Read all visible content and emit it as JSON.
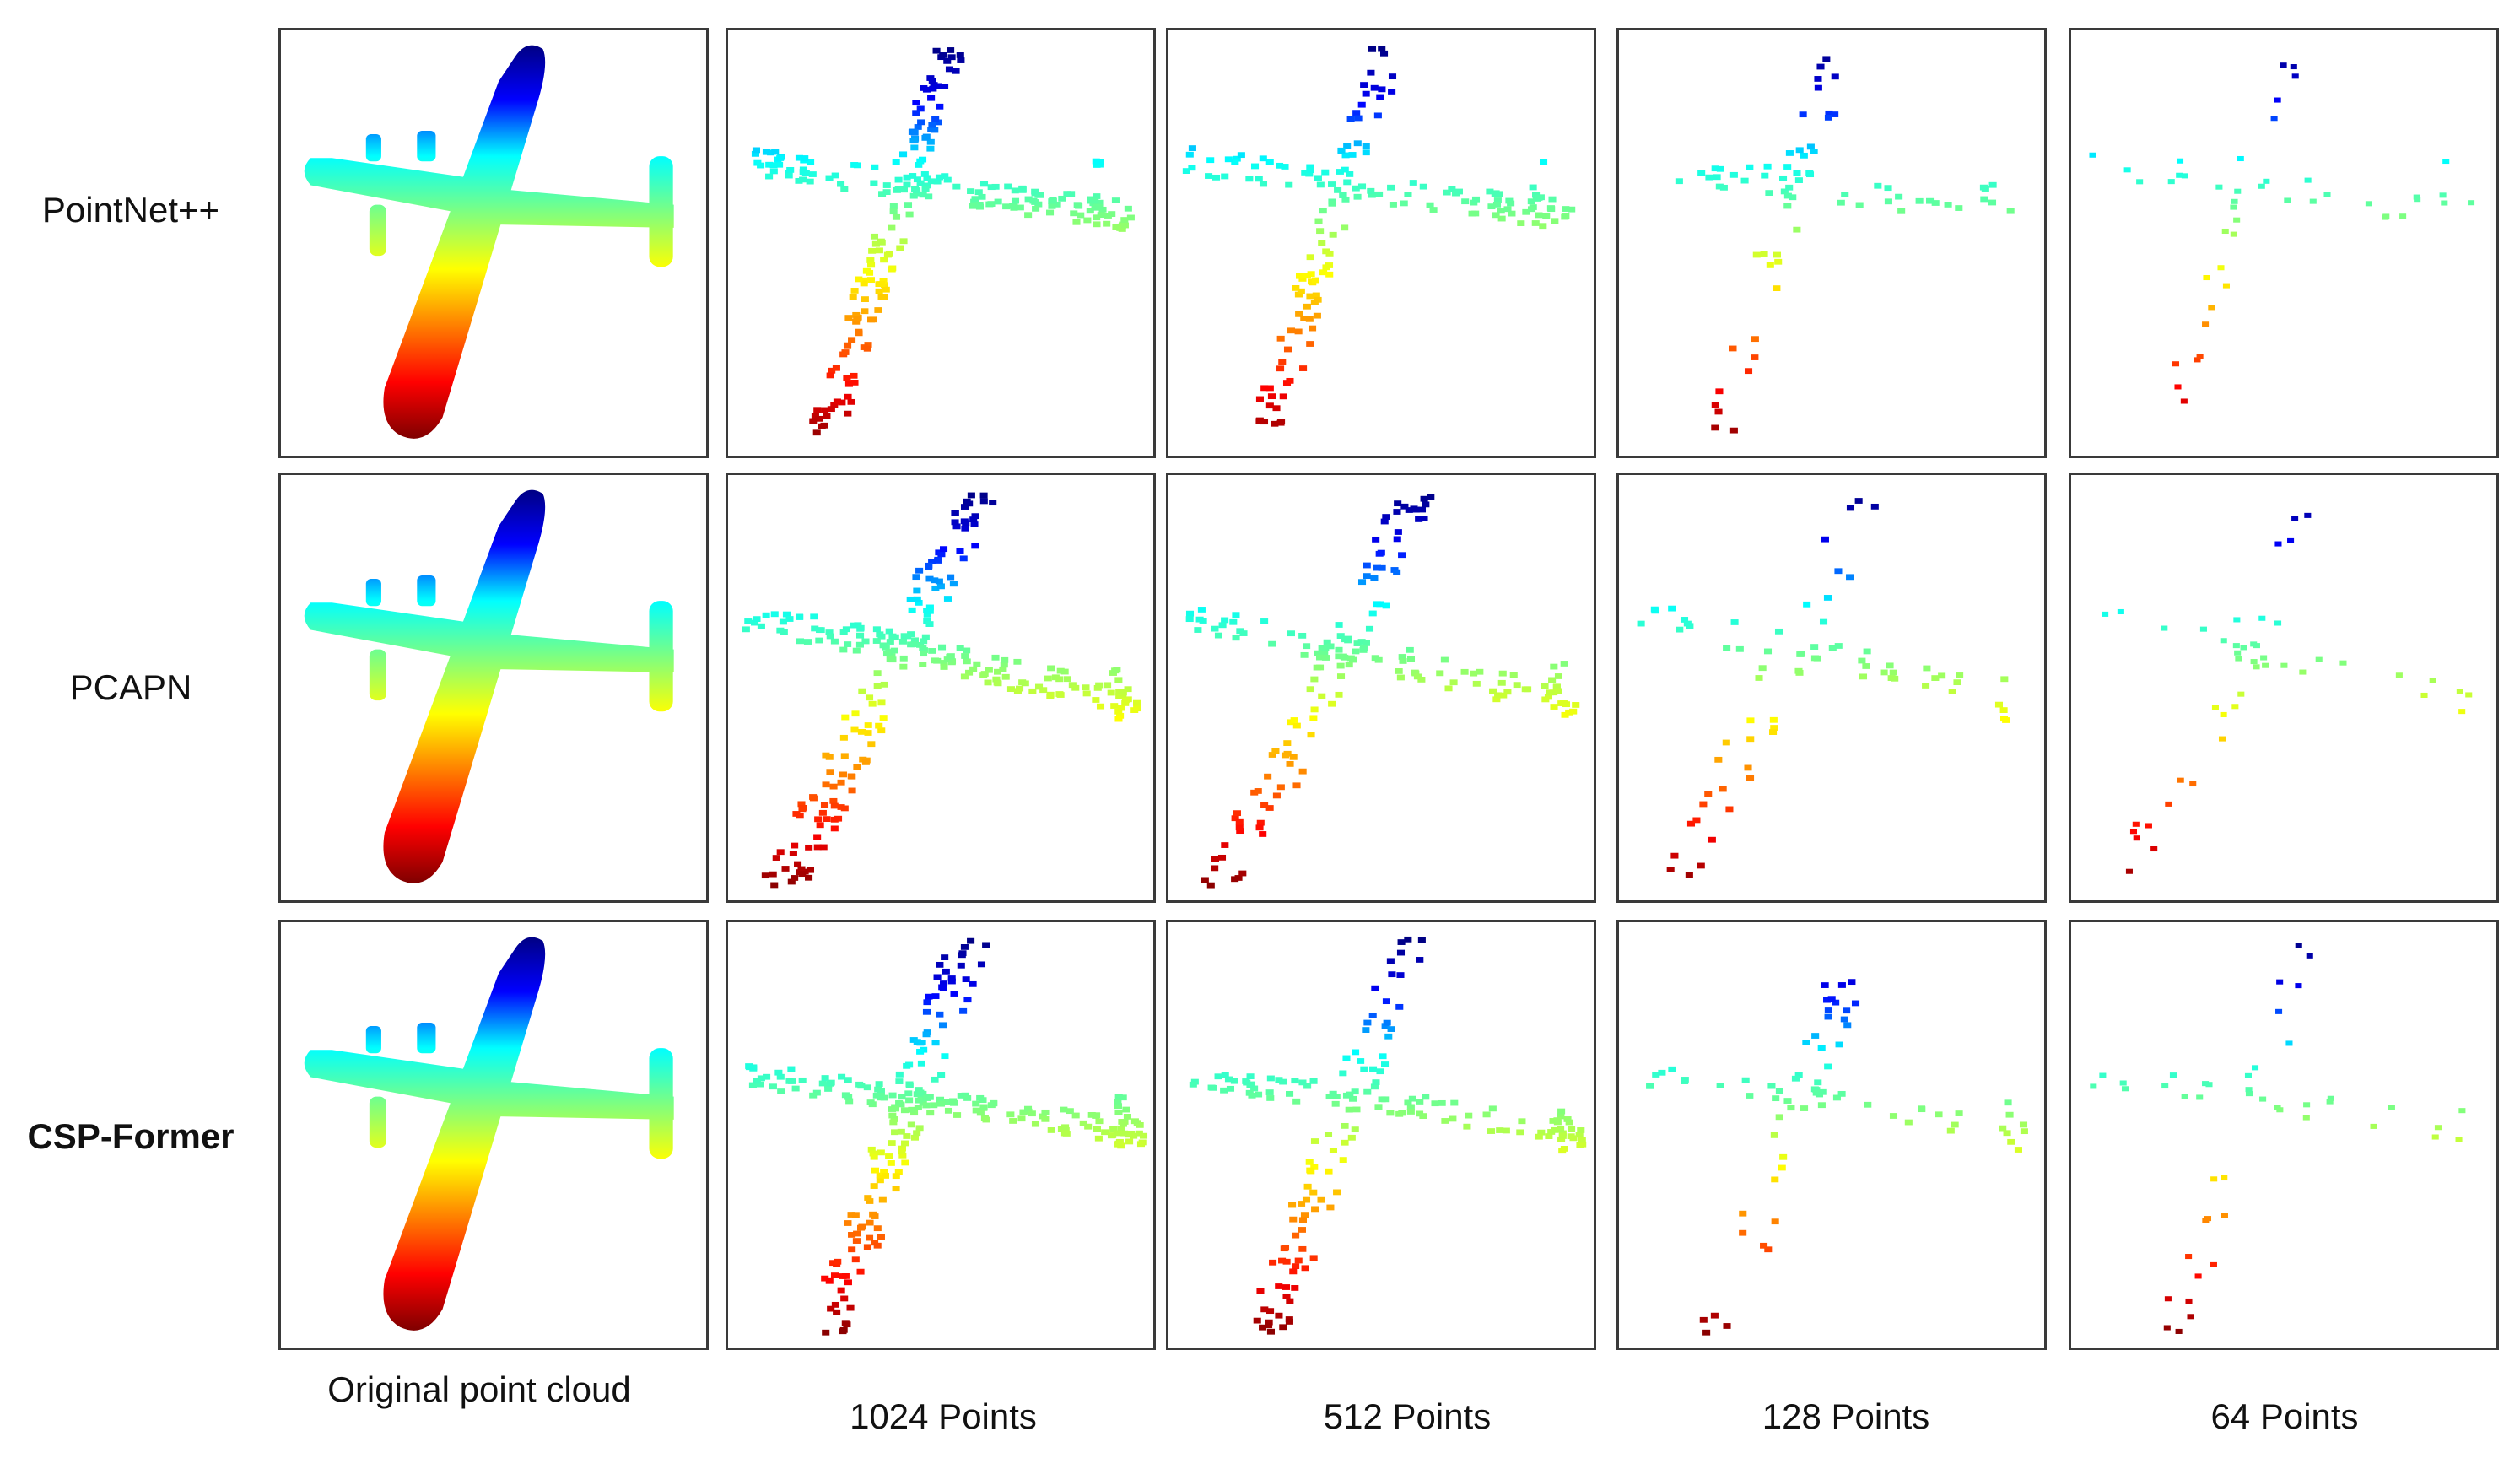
{
  "figure": {
    "row_labels": [
      "PointNet++",
      "PCAPN",
      "CSP-Former"
    ],
    "column_labels": [
      "Original point cloud",
      "1024 Points",
      "512 Points",
      "128 Points",
      "64 Points"
    ],
    "point_counts": [
      null,
      1024,
      512,
      128,
      64
    ],
    "subject": "airplane",
    "colormap": [
      "#00007f",
      "#0000ff",
      "#00ffff",
      "#7fff7f",
      "#ffff00",
      "#ff7f00",
      "#ff0000",
      "#7f0000"
    ]
  }
}
